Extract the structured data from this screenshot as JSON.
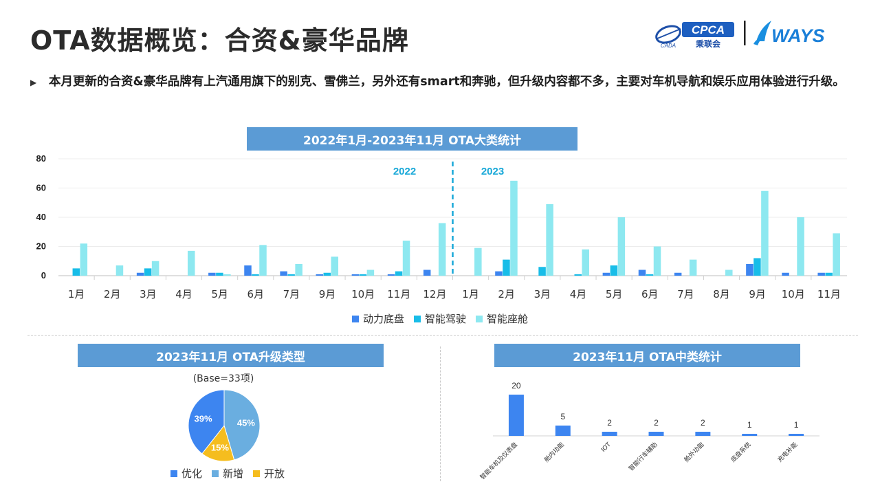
{
  "page": {
    "title": "OTA数据概览：合资&豪华品牌",
    "bullet": "本月更新的合资&豪华品牌有上汽通用旗下的别克、雪佛兰，另外还有smart和奔驰，但升级内容都不多，主要对车机导航和娱乐应用体验进行升级。"
  },
  "logos": {
    "cpca_text": "CPCA",
    "cpca_sub": "乘联会",
    "cpca_small": "CADA",
    "ways_text": "WAYS"
  },
  "colors": {
    "banner": "#5b9bd5",
    "power": "#3d85f0",
    "drive": "#18bde8",
    "cabin": "#8de8f0",
    "pie_opt": "#3d85f0",
    "pie_new": "#6aaee0",
    "pie_open": "#f5bd1f",
    "year_label": "#18a8d8"
  },
  "chart_data": [
    {
      "type": "bar",
      "title": "2022年1月-2023年11月 OTA大类统计",
      "categories": [
        "1月",
        "2月",
        "3月",
        "4月",
        "5月",
        "6月",
        "7月",
        "9月",
        "10月",
        "11月",
        "12月",
        "1月",
        "2月",
        "3月",
        "4月",
        "5月",
        "6月",
        "7月",
        "8月",
        "9月",
        "10月",
        "11月"
      ],
      "series": [
        {
          "name": "动力底盘",
          "values": [
            0,
            0,
            2,
            0,
            2,
            7,
            3,
            1,
            1,
            1,
            4,
            0,
            3,
            0,
            0,
            2,
            4,
            2,
            0,
            8,
            2,
            2
          ]
        },
        {
          "name": "智能驾驶",
          "values": [
            5,
            0,
            5,
            0,
            2,
            1,
            1,
            2,
            1,
            3,
            0,
            0,
            11,
            6,
            1,
            7,
            1,
            0,
            0,
            12,
            0,
            2
          ]
        },
        {
          "name": "智能座舱",
          "values": [
            22,
            7,
            10,
            17,
            1,
            21,
            8,
            13,
            4,
            24,
            36,
            19,
            65,
            49,
            18,
            40,
            20,
            11,
            4,
            58,
            40,
            29
          ]
        }
      ],
      "ylim": [
        0,
        80
      ],
      "yticks": [
        "0",
        "20",
        "40",
        "60",
        "80"
      ],
      "year_divider_after_index": 10,
      "year_labels": [
        "2022",
        "2023"
      ],
      "legend": "bottom",
      "grid": true
    },
    {
      "type": "pie",
      "title": "2023年11月 OTA升级类型",
      "subtitle": "(Base=33项)",
      "slices": [
        {
          "name": "新增",
          "value": 45,
          "label": "45%"
        },
        {
          "name": "开放",
          "value": 15,
          "label": "15%"
        },
        {
          "name": "优化",
          "value": 39,
          "label": "39%"
        }
      ],
      "legend_order": [
        "优化",
        "新增",
        "开放"
      ],
      "legend": "bottom"
    },
    {
      "type": "bar",
      "title": "2023年11月 OTA中类统计",
      "categories": [
        "智能车机及仪表盘",
        "舱内功能",
        "IOT",
        "智能行车辅助",
        "舱外功能",
        "底盘系统",
        "充电补能"
      ],
      "values": [
        20,
        5,
        2,
        2,
        2,
        1,
        1
      ],
      "value_labels": [
        "20",
        "5",
        "2",
        "2",
        "2",
        "1",
        "1"
      ],
      "grid": false
    }
  ]
}
